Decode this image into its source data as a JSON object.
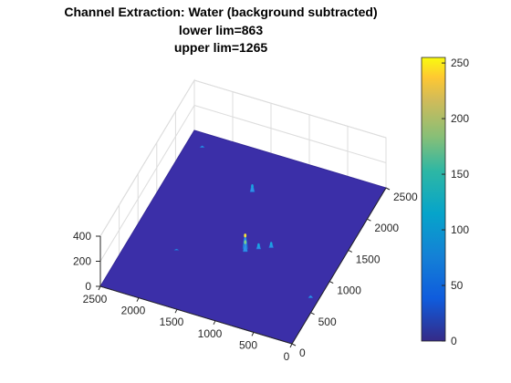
{
  "chart_data": {
    "type": "surface",
    "title_lines": [
      "Channel Extraction: Water (background subtracted)",
      "lower lim=863",
      "upper lim=1265"
    ],
    "xlabel": "",
    "ylabel": "",
    "zlabel": "",
    "x_range": [
      0,
      2500
    ],
    "y_range": [
      0,
      2500
    ],
    "z_range": [
      0,
      400
    ],
    "x_ticks": [
      "0",
      "500",
      "1000",
      "1500",
      "2000",
      "2500"
    ],
    "y_ticks": [
      "0",
      "500",
      "1000",
      "1500",
      "2000",
      "2500"
    ],
    "z_ticks": [
      "0",
      "200",
      "400"
    ],
    "colormap": "parula",
    "colorbar": {
      "range": [
        0,
        255
      ],
      "ticks": [
        "0",
        "50",
        "100",
        "150",
        "200",
        "250"
      ]
    },
    "grid": true,
    "peaks": [
      {
        "x": 1150,
        "y": 1100,
        "z": 120
      },
      {
        "x": 1130,
        "y": 1060,
        "z": 90
      },
      {
        "x": 1450,
        "y": 1900,
        "z": 60
      },
      {
        "x": 1000,
        "y": 1150,
        "z": 45
      },
      {
        "x": 870,
        "y": 1220,
        "z": 45
      },
      {
        "x": 2300,
        "y": 2300,
        "z": 15
      },
      {
        "x": 1900,
        "y": 800,
        "z": 10
      },
      {
        "x": 100,
        "y": 700,
        "z": 20
      }
    ],
    "colors": {
      "floor": "#3b2fa8",
      "floor_edge": "#34289a",
      "axes": "#262626",
      "grid": "#dcdcdc"
    }
  }
}
